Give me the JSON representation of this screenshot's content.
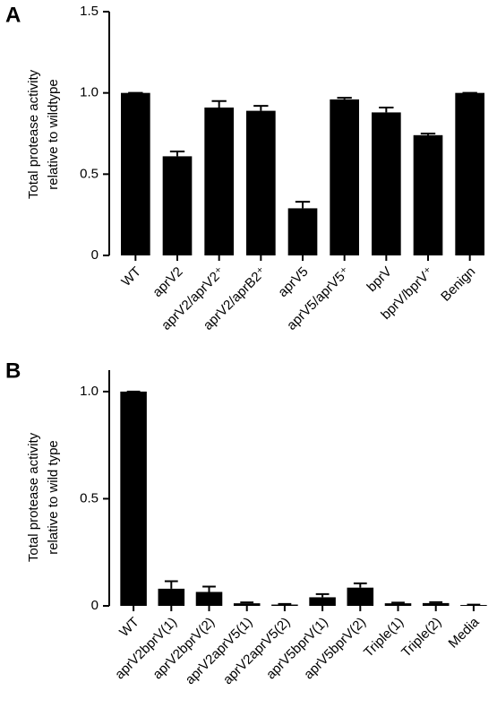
{
  "chart_data": [
    {
      "type": "bar",
      "panel": "A",
      "ylabel": [
        "Total protease activity",
        "relative to wildtype"
      ],
      "categories": [
        "WT",
        "aprV2",
        "aprV2/aprV2⁺",
        "aprV2/aprB2⁺",
        "aprV5",
        "aprV5/aprV5⁺",
        "bprV",
        "bprV/bprV⁺",
        "Benign"
      ],
      "values": [
        1.0,
        0.61,
        0.91,
        0.89,
        0.29,
        0.96,
        0.88,
        0.74,
        1.0
      ],
      "errors": [
        0,
        0.03,
        0.04,
        0.03,
        0.04,
        0.01,
        0.03,
        0.01,
        0
      ],
      "color": "#000000",
      "ylim": [
        0,
        1.5
      ],
      "yticks": [
        0,
        0.5,
        {
          "value": 1,
          "label": "1.0"
        },
        1.5
      ]
    },
    {
      "type": "bar",
      "panel": "B",
      "ylabel": [
        "Total protease activity",
        "relative to wild type"
      ],
      "categories": [
        "WT",
        "aprV2bprV(1)",
        "aprV2bprV(2)",
        "aprV2aprV5(1)",
        "aprV2aprV5(2)",
        "aprV5bprV(1)",
        "aprV5bprV(2)",
        "Triple(1)",
        "Triple(2)",
        "Media"
      ],
      "values": [
        1.0,
        0.08,
        0.065,
        0.012,
        0.006,
        0.04,
        0.085,
        0.012,
        0.013,
        0.004
      ],
      "errors": [
        0,
        0.035,
        0.025,
        0.004,
        0.003,
        0.015,
        0.02,
        0.003,
        0.004,
        0.002
      ],
      "color": "#000000",
      "ylim": [
        0,
        1.1
      ],
      "yticks": [
        0,
        0.5,
        {
          "value": 1,
          "label": "1.0"
        }
      ]
    }
  ]
}
